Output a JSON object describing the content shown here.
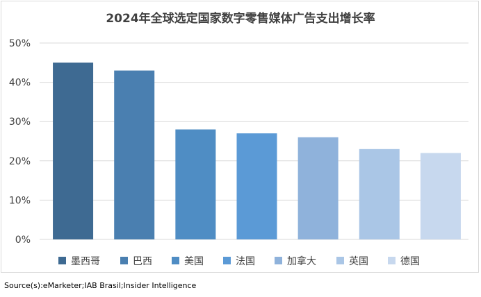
{
  "chart_data": {
    "type": "bar",
    "title": "2024年全球选定国家数字零售媒体广告支出增长率",
    "categories": [
      "墨西哥",
      "巴西",
      "美国",
      "法国",
      "加拿大",
      "英国",
      "德国"
    ],
    "values": [
      45,
      43,
      28,
      27,
      26,
      23,
      22
    ],
    "colors": [
      "#3e6a92",
      "#4a7fb0",
      "#4f8dc4",
      "#5b9ad6",
      "#8fb2db",
      "#aac6e6",
      "#c7d8ee"
    ],
    "yticks": [
      "0%",
      "10%",
      "20%",
      "30%",
      "40%",
      "50%"
    ],
    "ylim": [
      0,
      50
    ],
    "grid": true,
    "legend_position": "bottom"
  },
  "source": "Source(s):eMarketer;IAB Brasil;Insider Intelligence"
}
